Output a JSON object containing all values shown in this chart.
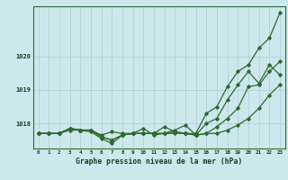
{
  "title": "Graphe pression niveau de la mer (hPa)",
  "bg_color": "#cde8ec",
  "grid_color": "#aacdd4",
  "line_color": "#2d6a2d",
  "axis_color": "#2d6a2d",
  "label_color": "#1a3a1a",
  "x_labels": [
    "0",
    "1",
    "2",
    "3",
    "4",
    "5",
    "6",
    "7",
    "8",
    "9",
    "10",
    "11",
    "12",
    "13",
    "14",
    "15",
    "16",
    "17",
    "18",
    "19",
    "20",
    "21",
    "22",
    "23"
  ],
  "yticks": [
    1018,
    1019,
    1020
  ],
  "ylim": [
    1017.25,
    1021.5
  ],
  "xlim": [
    -0.5,
    23.5
  ],
  "series": [
    [
      1017.7,
      1017.7,
      1017.7,
      1017.85,
      1017.8,
      1017.8,
      1017.65,
      1017.75,
      1017.7,
      1017.7,
      1017.7,
      1017.7,
      1017.7,
      1017.75,
      1017.7,
      1017.7,
      1018.3,
      1018.5,
      1019.1,
      1019.55,
      1019.75,
      1020.25,
      1020.55,
      1021.3
    ],
    [
      1017.7,
      1017.7,
      1017.7,
      1017.85,
      1017.8,
      1017.8,
      1017.6,
      1017.5,
      1017.65,
      1017.7,
      1017.7,
      1017.7,
      1017.9,
      1017.75,
      1017.7,
      1017.65,
      1018.0,
      1018.15,
      1018.7,
      1019.15,
      1019.55,
      1019.2,
      1019.75,
      1019.45
    ],
    [
      1017.7,
      1017.7,
      1017.7,
      1017.85,
      1017.8,
      1017.8,
      1017.6,
      1017.5,
      1017.65,
      1017.7,
      1017.85,
      1017.65,
      1017.7,
      1017.8,
      1017.95,
      1017.65,
      1017.7,
      1017.9,
      1018.15,
      1018.45,
      1019.1,
      1019.15,
      1019.55,
      1019.85
    ],
    [
      1017.7,
      1017.7,
      1017.7,
      1017.8,
      1017.8,
      1017.75,
      1017.55,
      1017.4,
      1017.65,
      1017.7,
      1017.7,
      1017.7,
      1017.7,
      1017.7,
      1017.7,
      1017.65,
      1017.7,
      1017.7,
      1017.8,
      1017.95,
      1018.15,
      1018.45,
      1018.85,
      1019.15
    ]
  ]
}
